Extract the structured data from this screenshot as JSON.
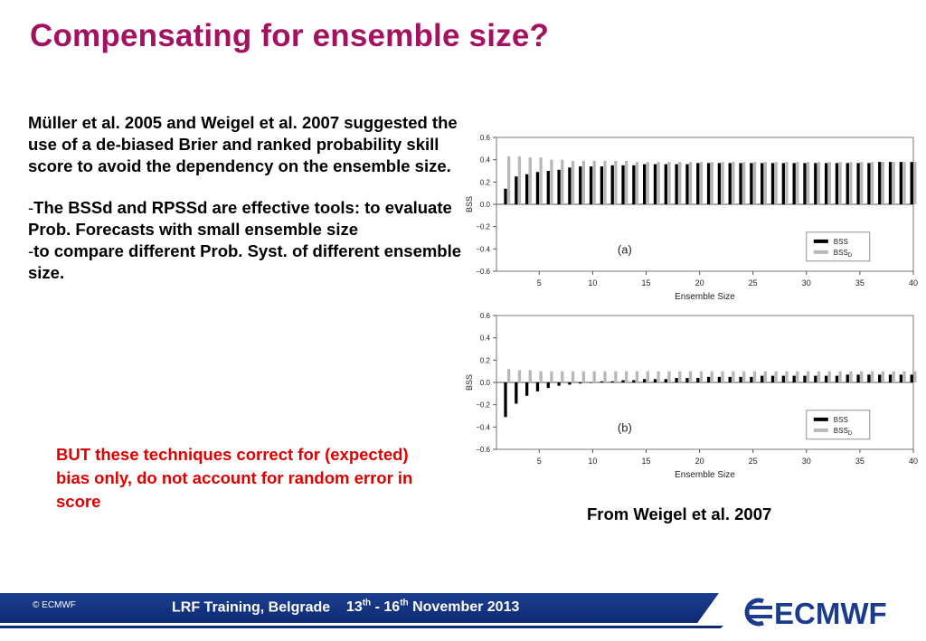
{
  "slide": {
    "title": "Compensating for ensemble size?",
    "paragraph1": "Müller et al. 2005 and  Weigel et al.  2007 suggested the use of a de-biased  Brier and ranked probability skill score to avoid the dependency on the ensemble size.",
    "bullet1": "The BSSd and RPSSd are effective  tools: to evaluate Prob. Forecasts with small ensemble size",
    "bullet2": "to compare different Prob. Syst. of different ensemble size.",
    "bullet_marker": "-",
    "warning": "BUT these techniques correct for (expected) bias only, do not account for random error in score",
    "source": "From Weigel et al. 2007"
  },
  "footer": {
    "copyright": "© ECMWF",
    "event": "LRF Training, Belgrade",
    "date_start_num": "13",
    "date_start_sup": "th",
    "date_sep": " - ",
    "date_end_num": "16",
    "date_end_sup": "th",
    "date_rest": " November 2013",
    "logo_text": "ECMWF",
    "logo_color": "#1b3c8c"
  },
  "chart_data": [
    {
      "type": "bar",
      "panel": "(a)",
      "xlabel": "Ensemble Size",
      "ylabel": "BSS",
      "xlim": [
        1,
        40
      ],
      "ylim": [
        -0.6,
        0.6
      ],
      "xticks": [
        5,
        10,
        15,
        20,
        25,
        30,
        35,
        40
      ],
      "yticks": [
        0.6,
        0.4,
        0.2,
        0.0,
        -0.2,
        -0.4,
        -0.6
      ],
      "ytick_labels": [
        "0.6",
        "0.4",
        "0.2",
        "0.0",
        "−0.2",
        "−0.4",
        "−0.6"
      ],
      "legend_position": "lower-right",
      "x": [
        2,
        3,
        4,
        5,
        6,
        7,
        8,
        9,
        10,
        11,
        12,
        13,
        14,
        15,
        16,
        17,
        18,
        19,
        20,
        21,
        22,
        23,
        24,
        25,
        26,
        27,
        28,
        29,
        30,
        31,
        32,
        33,
        34,
        35,
        36,
        37,
        38,
        39,
        40
      ],
      "series": [
        {
          "name": "BSS",
          "color": "#000000",
          "values": [
            0.14,
            0.25,
            0.27,
            0.29,
            0.3,
            0.31,
            0.33,
            0.34,
            0.34,
            0.34,
            0.35,
            0.35,
            0.35,
            0.36,
            0.36,
            0.36,
            0.36,
            0.36,
            0.37,
            0.37,
            0.37,
            0.37,
            0.37,
            0.37,
            0.37,
            0.37,
            0.37,
            0.37,
            0.37,
            0.37,
            0.37,
            0.37,
            0.37,
            0.37,
            0.37,
            0.38,
            0.38,
            0.38,
            0.38
          ]
        },
        {
          "name": "BSS_D",
          "color": "#b8b8b8",
          "values": [
            0.43,
            0.43,
            0.42,
            0.42,
            0.4,
            0.4,
            0.39,
            0.39,
            0.39,
            0.39,
            0.39,
            0.39,
            0.38,
            0.38,
            0.38,
            0.38,
            0.38,
            0.38,
            0.38,
            0.38,
            0.38,
            0.38,
            0.38,
            0.38,
            0.38,
            0.38,
            0.38,
            0.38,
            0.38,
            0.38,
            0.38,
            0.38,
            0.38,
            0.38,
            0.38,
            0.38,
            0.38,
            0.38,
            0.38
          ]
        }
      ]
    },
    {
      "type": "bar",
      "panel": "(b)",
      "xlabel": "Ensemble Size",
      "ylabel": "BSS",
      "xlim": [
        1,
        40
      ],
      "ylim": [
        -0.6,
        0.6
      ],
      "xticks": [
        5,
        10,
        15,
        20,
        25,
        30,
        35,
        40
      ],
      "yticks": [
        0.6,
        0.4,
        0.2,
        0.0,
        -0.2,
        -0.4,
        -0.6
      ],
      "ytick_labels": [
        "0.6",
        "0.4",
        "0.2",
        "0.0",
        "−0.2",
        "−0.4",
        "−0.6"
      ],
      "legend_position": "lower-right",
      "x": [
        2,
        3,
        4,
        5,
        6,
        7,
        8,
        9,
        10,
        11,
        12,
        13,
        14,
        15,
        16,
        17,
        18,
        19,
        20,
        21,
        22,
        23,
        24,
        25,
        26,
        27,
        28,
        29,
        30,
        31,
        32,
        33,
        34,
        35,
        36,
        37,
        38,
        39,
        40
      ],
      "series": [
        {
          "name": "BSS",
          "color": "#000000",
          "values": [
            -0.31,
            -0.19,
            -0.12,
            -0.08,
            -0.05,
            -0.03,
            -0.02,
            -0.01,
            0.0,
            0.01,
            0.01,
            0.02,
            0.02,
            0.03,
            0.03,
            0.03,
            0.04,
            0.04,
            0.04,
            0.05,
            0.05,
            0.05,
            0.05,
            0.05,
            0.06,
            0.06,
            0.06,
            0.06,
            0.06,
            0.06,
            0.06,
            0.06,
            0.07,
            0.07,
            0.07,
            0.07,
            0.07,
            0.07,
            0.07
          ]
        },
        {
          "name": "BSS_D",
          "color": "#b8b8b8",
          "values": [
            0.12,
            0.11,
            0.11,
            0.1,
            0.1,
            0.1,
            0.1,
            0.1,
            0.1,
            0.1,
            0.1,
            0.1,
            0.1,
            0.1,
            0.1,
            0.1,
            0.1,
            0.1,
            0.1,
            0.1,
            0.1,
            0.1,
            0.1,
            0.1,
            0.1,
            0.1,
            0.1,
            0.1,
            0.1,
            0.1,
            0.1,
            0.1,
            0.1,
            0.1,
            0.1,
            0.1,
            0.1,
            0.1,
            0.1
          ]
        }
      ]
    }
  ]
}
